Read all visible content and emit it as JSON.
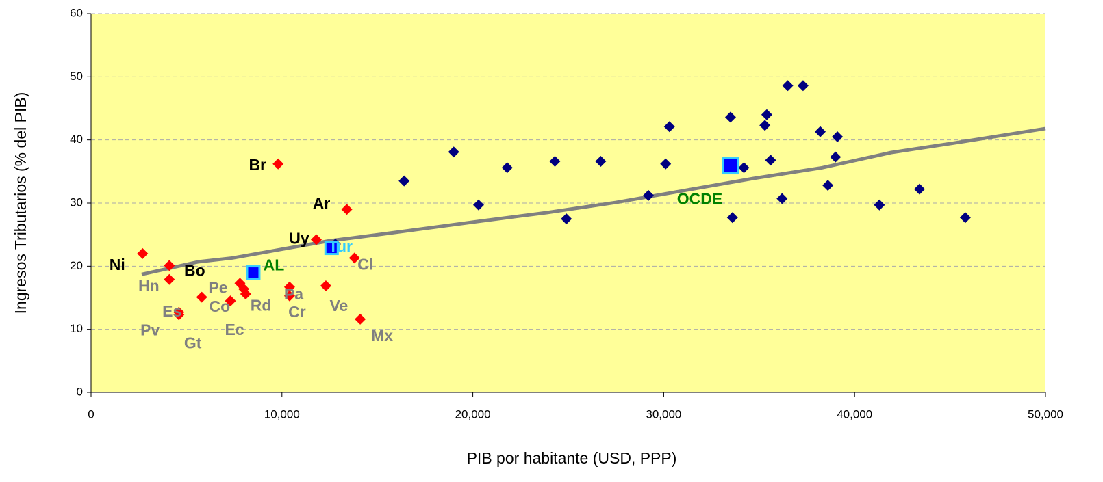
{
  "chart_data": {
    "type": "scatter",
    "x_label": "PIB por habitante (USD, PPP)",
    "y_label": "Ingresos Tributarios (% del PIB)",
    "xlim": [
      0,
      50000
    ],
    "ylim": [
      0,
      60
    ],
    "xticks": [
      0,
      {
        "value": 10000,
        "label": "10,000"
      },
      {
        "value": 20000,
        "label": "20,000"
      },
      {
        "value": 30000,
        "label": "30,000"
      },
      {
        "value": 40000,
        "label": "40,000"
      },
      {
        "value": 50000,
        "label": "50,000"
      }
    ],
    "yticks": [
      0,
      10,
      20,
      30,
      40,
      50,
      60
    ],
    "grid": true,
    "background": "#ffff99",
    "series": [
      {
        "marker": "diamond",
        "color": "#00007f",
        "x": [
          16400,
          19000,
          20300,
          21800,
          24300,
          24900,
          26700,
          29200,
          30100,
          30300,
          33500,
          33600,
          34200,
          35300,
          35400,
          35600,
          36200,
          36500,
          37300,
          38200,
          38600,
          39000,
          39100,
          41300,
          43400,
          45800,
          12800
        ],
        "y": [
          33.5,
          38.1,
          29.7,
          35.6,
          36.6,
          27.5,
          36.6,
          31.2,
          36.2,
          42.1,
          43.6,
          27.7,
          35.6,
          42.3,
          44.0,
          36.8,
          30.7,
          48.6,
          48.6,
          41.3,
          32.8,
          37.3,
          40.5,
          29.7,
          32.2,
          27.7,
          23.5
        ]
      },
      {
        "marker": "diamond",
        "color": "#ff0000",
        "x": [
          2700,
          4100,
          4100,
          4600,
          4600,
          5800,
          7300,
          7800,
          8000,
          8100,
          9800,
          10400,
          10400,
          11800,
          12300,
          13400,
          13800,
          14100
        ],
        "y": [
          22.0,
          20.1,
          17.9,
          12.3,
          12.7,
          15.1,
          14.5,
          17.3,
          16.4,
          15.6,
          36.2,
          16.7,
          15.3,
          24.2,
          16.9,
          29.0,
          21.3,
          11.6
        ],
        "labels": [
          "Ni",
          "Bo",
          "Hn",
          "Pv",
          "Es",
          "Gt",
          "Ec",
          "Pe",
          "Rd",
          "Co",
          "Br",
          "Pa",
          "Cr",
          "Uy",
          "Ve",
          "Ar",
          "Cl",
          "Mx"
        ],
        "label_colors": [
          "#000000",
          "#000000",
          "#808080",
          "#808080",
          "#808080",
          "#808080",
          "#808080",
          "#808080",
          "#808080",
          "#808080",
          "#000000",
          "#808080",
          "#808080",
          "#000000",
          "#808080",
          "#000000",
          "#808080",
          "#808080"
        ]
      },
      {
        "marker": "square",
        "color": "#0000ff",
        "edge_color": "#33ccff",
        "x": [
          8500,
          12600,
          33500
        ],
        "y": [
          19.0,
          22.9,
          35.9
        ],
        "labels": [
          "AL",
          "Tur",
          "OCDE"
        ],
        "label_colors": [
          "#008000",
          "#33ccff",
          "#008000"
        ]
      },
      {
        "marker": "line",
        "color": "#808080",
        "x": [
          2650,
          5630,
          7420,
          12450,
          15300,
          20300,
          23900,
          27500,
          31100,
          34700,
          38300,
          41900,
          45400,
          50000
        ],
        "y": [
          18.7,
          20.7,
          21.3,
          24.0,
          25.1,
          27.1,
          28.5,
          30.1,
          32.0,
          33.9,
          35.6,
          38.0,
          39.6,
          41.8
        ]
      }
    ]
  }
}
